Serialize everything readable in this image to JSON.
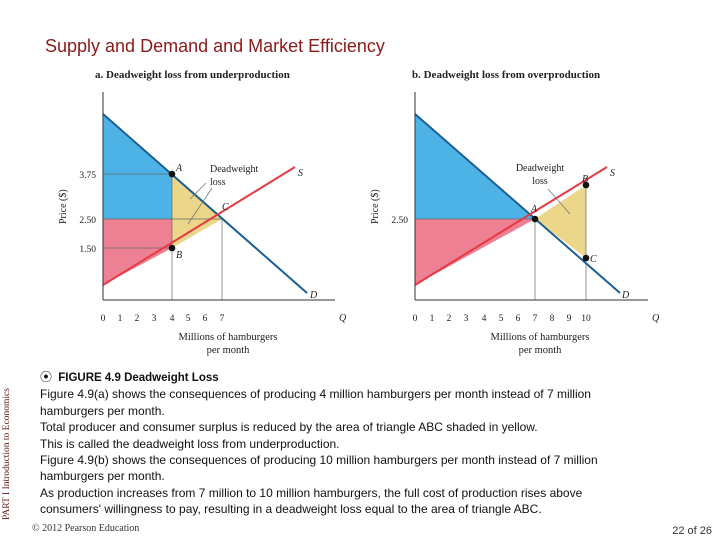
{
  "slide": {
    "title": "Supply and Demand and Market Efficiency",
    "side_label": "PART I  Introduction to Economics",
    "footer_copyright": "© 2012 Pearson Education",
    "page_number": "22 of 26"
  },
  "colors": {
    "consumer_surplus": "#4db3e6",
    "producer_surplus": "#ee8093",
    "deadweight": "#ecd689",
    "supply_line": "#e63a43",
    "demand_line": "#1b5f93",
    "title": "#8b1a1a"
  },
  "panel_a": {
    "title": "a. Deadweight loss from underproduction",
    "y_axis_label": "Price ($)",
    "x_axis_label_line1": "Millions of hamburgers",
    "x_axis_label_line2": "per month",
    "y_ticks": [
      "3.75",
      "2.50",
      "1.50"
    ],
    "x_ticks": [
      "0",
      "1",
      "2",
      "3",
      "4",
      "5",
      "6",
      "7"
    ],
    "q_label": "Q",
    "s_label": "S",
    "d_label": "D",
    "point_a": "A",
    "point_b": "B",
    "point_c": "C",
    "annotation_line1": "Deadweight",
    "annotation_line2": "loss"
  },
  "panel_b": {
    "title": "b. Deadweight loss from overproduction",
    "y_axis_label": "Price ($)",
    "x_axis_label_line1": "Millions of hamburgers",
    "x_axis_label_line2": "per month",
    "y_ticks": [
      "2.50"
    ],
    "x_ticks": [
      "0",
      "1",
      "2",
      "3",
      "4",
      "5",
      "6",
      "7",
      "8",
      "9",
      "10"
    ],
    "q_label": "Q",
    "s_label": "S",
    "d_label": "D",
    "point_a": "A",
    "point_b": "B",
    "point_c": "C",
    "annotation_line1": "Deadweight",
    "annotation_line2": "loss"
  },
  "caption": {
    "icon": "⦿",
    "figure_label": "FIGURE 4.9",
    "figure_title": "Deadweight Loss",
    "lines": [
      "Figure 4.9(a) shows the consequences of producing 4 million hamburgers per month instead of 7 million",
      "hamburgers per month.",
      "Total producer and consumer surplus is reduced by the area of triangle  ABC shaded in yellow.",
      "This is called the deadweight loss from underproduction.",
      "Figure 4.9(b) shows the consequences of producing 10 million hamburgers per month instead of 7 million",
      "hamburgers per month.",
      "As production increases from 7 million to 10 million hamburgers, the full cost of production rises above",
      "consumers' willingness to pay, resulting in a deadweight loss equal to the area of triangle  ABC."
    ]
  }
}
